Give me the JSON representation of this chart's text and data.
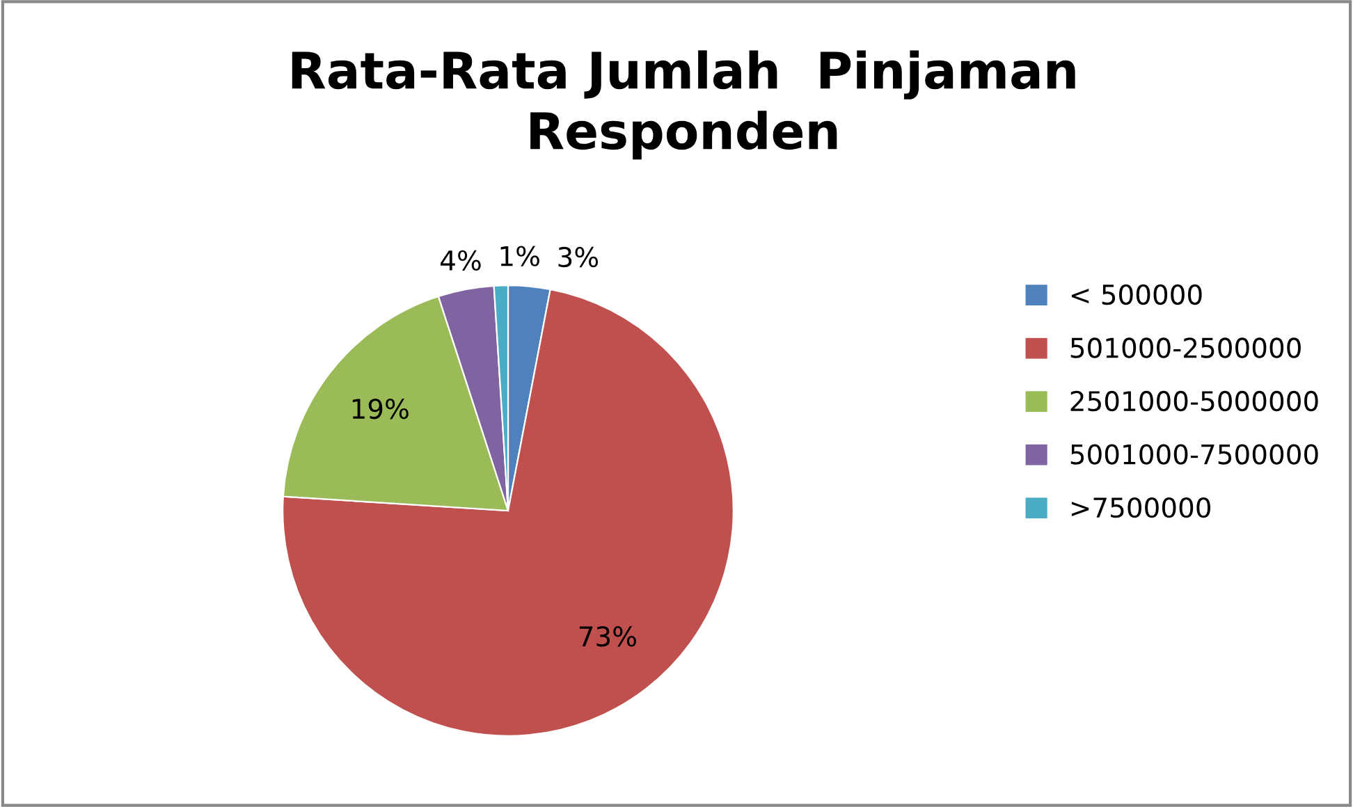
{
  "chart_data": {
    "type": "pie",
    "title": "Rata-Rata Jumlah  Pinjaman\nResponden",
    "categories": [
      "< 500000",
      "501000-2500000",
      "2501000-5000000",
      "5001000-7500000",
      ">7500000"
    ],
    "values": [
      3,
      73,
      19,
      4,
      1
    ],
    "value_labels": [
      "3%",
      "73%",
      "19%",
      "4%",
      "1%"
    ],
    "colors": [
      "#4f81bd",
      "#c0504d",
      "#9bbb59",
      "#8064a2",
      "#4bacc6"
    ],
    "legend": "right"
  }
}
